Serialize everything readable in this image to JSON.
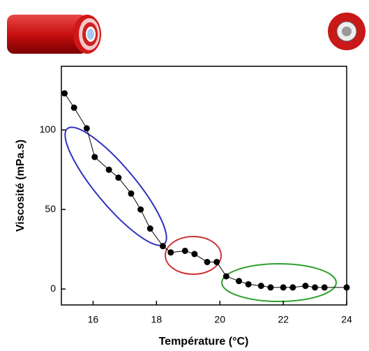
{
  "chart_data": {
    "type": "line",
    "xlabel": "Température (°C)",
    "ylabel": "Viscosité (mPa.s)",
    "x": [
      15.1,
      15.4,
      15.8,
      16.05,
      16.5,
      16.8,
      17.2,
      17.5,
      17.8,
      18.2,
      18.45,
      18.9,
      19.2,
      19.6,
      19.9,
      20.2,
      20.6,
      20.9,
      21.3,
      21.6,
      22.0,
      22.3,
      22.7,
      23.0,
      23.3,
      24.0
    ],
    "values": [
      123,
      114,
      101,
      83,
      75,
      70,
      60,
      50,
      38,
      27,
      23,
      24,
      22,
      17,
      17,
      8,
      5,
      3,
      2,
      1,
      1,
      1,
      2,
      1,
      1,
      1
    ],
    "color": "#000000",
    "xlim": [
      15,
      24
    ],
    "ylim": [
      -10,
      140
    ],
    "xticks": [
      16,
      18,
      20,
      22,
      24
    ],
    "yticks": [
      0,
      50,
      100
    ]
  }
}
